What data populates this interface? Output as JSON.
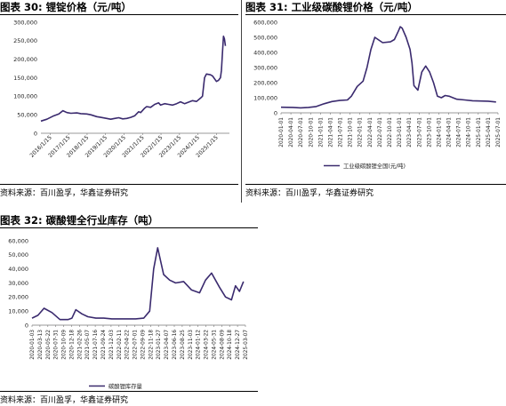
{
  "source_text": "资料来源：百川盈孚，华鑫证券研究",
  "charts": [
    {
      "header_prefix": "图表 30:",
      "header_title": "锂锭价格（元/吨）"
    },
    {
      "header_prefix": "图表 31:",
      "header_title": "工业级碳酸锂价格（元/吨）"
    },
    {
      "header_prefix": "图表 32:",
      "header_title": "碳酸锂全行业库存（吨）"
    }
  ],
  "colors": {
    "series": "#3a2a6e",
    "axis": "#777777",
    "text": "#222222"
  },
  "chart_data": [
    {
      "type": "line",
      "title": "锂锭价格（元/吨）",
      "ylim": [
        0,
        300000
      ],
      "yticks": [
        0,
        50000,
        100000,
        150000,
        200000,
        250000,
        300000
      ],
      "x_tick_labels": [
        "2016/1/15",
        "2017/1/15",
        "2018/1/15",
        "2019/1/15",
        "2020/1/15",
        "2021/1/15",
        "2022/1/15",
        "2023/1/15",
        "2024/1/15",
        "2025/1/15"
      ],
      "x_range": [
        2016.0,
        2025.45
      ],
      "x": [
        2016.0,
        2016.3,
        2016.6,
        2016.9,
        2017.1,
        2017.3,
        2017.5,
        2017.8,
        2018.0,
        2018.3,
        2018.5,
        2018.8,
        2019.0,
        2019.3,
        2019.5,
        2019.7,
        2019.9,
        2020.1,
        2020.3,
        2020.5,
        2020.7,
        2020.9,
        2021.0,
        2021.2,
        2021.3,
        2021.5,
        2021.7,
        2021.9,
        2022.0,
        2022.2,
        2022.4,
        2022.6,
        2022.8,
        2023.0,
        2023.2,
        2023.4,
        2023.6,
        2023.8,
        2024.0,
        2024.1,
        2024.2,
        2024.3,
        2024.5,
        2024.6,
        2024.8,
        2024.9,
        2025.0,
        2025.05,
        2025.1,
        2025.15,
        2025.2,
        2025.25
      ],
      "series": [
        {
          "name": "",
          "values": [
            33000,
            38000,
            46000,
            52000,
            61000,
            56000,
            54000,
            55000,
            53000,
            52000,
            50000,
            45000,
            43000,
            40000,
            38000,
            40000,
            42000,
            39000,
            40000,
            43000,
            47000,
            58000,
            56000,
            68000,
            72000,
            70000,
            78000,
            82000,
            76000,
            80000,
            78000,
            76000,
            80000,
            85000,
            80000,
            84000,
            88000,
            86000,
            95000,
            100000,
            150000,
            160000,
            158000,
            155000,
            140000,
            143000,
            150000,
            170000,
            215000,
            262000,
            255000,
            236000
          ]
        }
      ]
    },
    {
      "type": "line",
      "title": "工业级碳酸锂价格（元/吨）",
      "ylim": [
        0,
        600000
      ],
      "yticks": [
        0,
        100000,
        200000,
        300000,
        400000,
        500000,
        600000
      ],
      "x_tick_labels": [
        "2020-01-01",
        "2020-04-01",
        "2020-07-01",
        "2020-10-01",
        "2021-01-01",
        "2021-04-01",
        "2021-07-01",
        "2021-10-01",
        "2022-01-01",
        "2022-04-01",
        "2022-07-01",
        "2022-10-01",
        "2023-01-01",
        "2023-04-01",
        "2023-07-01",
        "2023-10-01",
        "2024-01-01",
        "2024-04-01",
        "2024-07-01",
        "2024-10-01",
        "2025-01-01",
        "2025-04-01",
        "2025-07-01"
      ],
      "x_range": [
        2020.0,
        2025.55
      ],
      "x": [
        2020.0,
        2020.3,
        2020.5,
        2020.7,
        2020.9,
        2021.1,
        2021.3,
        2021.5,
        2021.7,
        2021.8,
        2021.95,
        2022.1,
        2022.2,
        2022.3,
        2022.4,
        2022.6,
        2022.8,
        2022.9,
        2023.0,
        2023.05,
        2023.1,
        2023.2,
        2023.3,
        2023.35,
        2023.4,
        2023.5,
        2023.6,
        2023.7,
        2023.8,
        2023.9,
        2024.0,
        2024.1,
        2024.2,
        2024.3,
        2024.5,
        2024.7,
        2024.9,
        2025.1,
        2025.3,
        2025.5
      ],
      "series": [
        {
          "name": "工业级碳酸锂全国(元/吨)",
          "values": [
            37000,
            36000,
            33000,
            36000,
            42000,
            60000,
            75000,
            82000,
            85000,
            110000,
            175000,
            210000,
            300000,
            420000,
            500000,
            465000,
            470000,
            485000,
            540000,
            570000,
            560000,
            500000,
            420000,
            330000,
            180000,
            150000,
            270000,
            310000,
            270000,
            200000,
            110000,
            100000,
            115000,
            110000,
            90000,
            85000,
            80000,
            78000,
            77000,
            72000
          ]
        }
      ]
    },
    {
      "type": "line",
      "title": "碳酸锂全行业库存（吨）",
      "ylim": [
        0,
        60000
      ],
      "yticks": [
        0,
        10000,
        20000,
        30000,
        40000,
        50000,
        60000
      ],
      "x_tick_labels": [
        "2020-01-03",
        "2020-03-13",
        "2020-05-22",
        "2020-07-31",
        "2020-10-09",
        "2020-12-18",
        "2021-02-26",
        "2021-05-07",
        "2021-07-16",
        "2021-09-24",
        "2021-12-03",
        "2022-02-11",
        "2022-04-22",
        "2022-07-01",
        "2022-09-09",
        "2022-11-18",
        "2023-01-27",
        "2023-04-07",
        "2023-06-16",
        "2023-08-25",
        "2023-11-03",
        "2024-01-12",
        "2024-03-22",
        "2024-05-31",
        "2024-08-09",
        "2024-10-18",
        "2024-12-27",
        "2025-03-07"
      ],
      "x_range": [
        2020.0,
        2025.35
      ],
      "x": [
        2020.0,
        2020.15,
        2020.3,
        2020.5,
        2020.7,
        2020.9,
        2021.0,
        2021.1,
        2021.25,
        2021.4,
        2021.6,
        2021.8,
        2022.0,
        2022.3,
        2022.6,
        2022.8,
        2022.95,
        2023.05,
        2023.15,
        2023.3,
        2023.45,
        2023.6,
        2023.8,
        2024.0,
        2024.2,
        2024.35,
        2024.5,
        2024.7,
        2024.85,
        2025.0,
        2025.1,
        2025.2,
        2025.3
      ],
      "series": [
        {
          "name": "碳酸锂库存量",
          "values": [
            5000,
            7000,
            12000,
            9000,
            4000,
            4000,
            5000,
            11000,
            8000,
            6000,
            5000,
            5000,
            4500,
            4500,
            4500,
            5000,
            10000,
            40000,
            55000,
            36000,
            32000,
            30000,
            31000,
            25000,
            23000,
            32000,
            37000,
            27000,
            20000,
            18000,
            28000,
            24000,
            31000
          ]
        }
      ]
    }
  ]
}
